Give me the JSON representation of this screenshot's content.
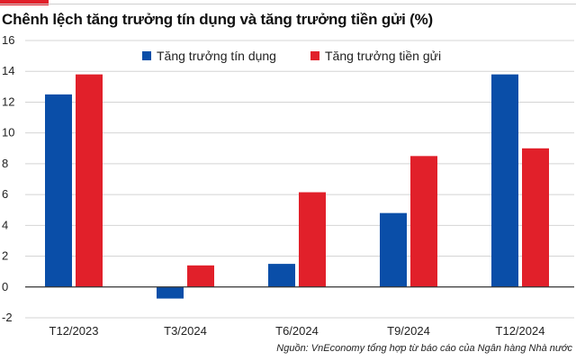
{
  "chart_data": {
    "type": "bar",
    "title": "Chênh lệch tăng trưởng tín dụng và tăng trưởng tiền gửi (%)",
    "categories": [
      "T12/2023",
      "T3/2024",
      "T6/2024",
      "T9/2024",
      "T12/2024"
    ],
    "series": [
      {
        "name": "Tăng trưởng tín dụng",
        "color": "#0a4ea8",
        "values": [
          12.5,
          -0.75,
          1.5,
          4.8,
          13.8
        ]
      },
      {
        "name": "Tăng trưởng tiền gửi",
        "color": "#e1202a",
        "values": [
          13.8,
          1.4,
          6.15,
          8.5,
          9.0
        ]
      }
    ],
    "yticks": [
      "-2",
      "0",
      "2",
      "4",
      "6",
      "8",
      "10",
      "12",
      "14",
      "16"
    ],
    "ylim": [
      -2,
      16
    ],
    "xlabel": "",
    "ylabel": "",
    "grid": true,
    "legend_position": "top-center",
    "source": "Nguồn: VnEconomy tổng hợp từ báo cáo của Ngân hàng Nhà nước"
  },
  "theme": {
    "accent": "#e1202a",
    "grid_color": "#d4d4d4",
    "zero_line_color": "#333333"
  }
}
